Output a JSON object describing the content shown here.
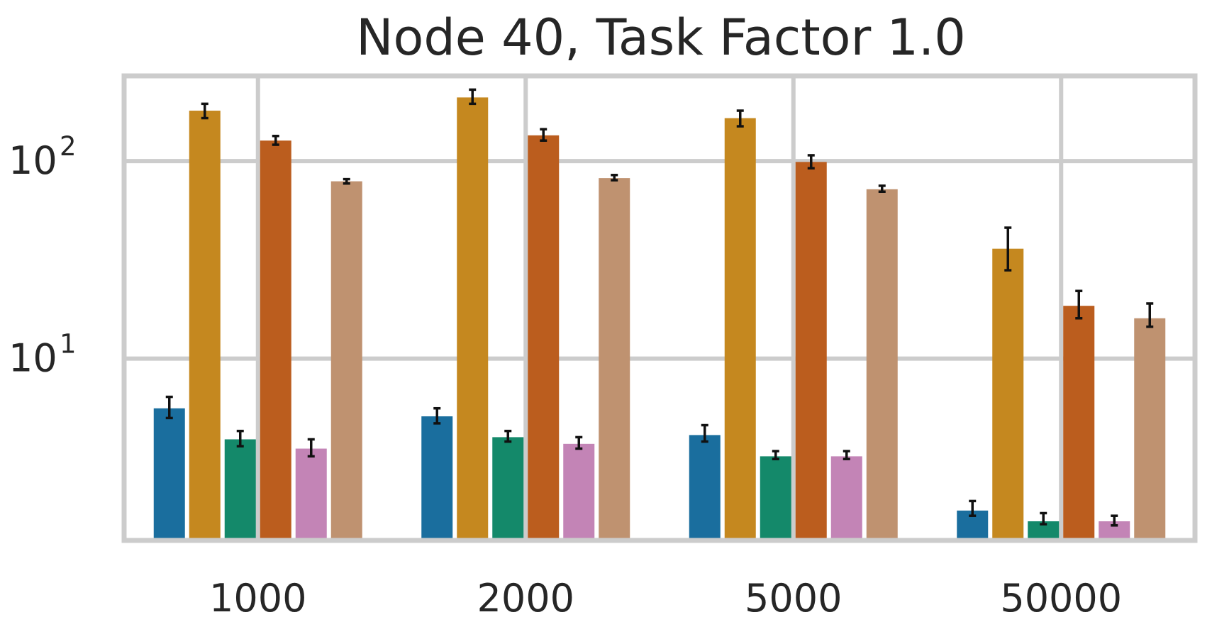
{
  "chart_data": {
    "type": "bar",
    "title": "Node 40, Task Factor 1.0",
    "xlabel": "",
    "ylabel": "",
    "yscale": "log",
    "ylim": [
      1.2,
      270
    ],
    "yticks": [
      {
        "value": 10,
        "base": "10",
        "exp": "1"
      },
      {
        "value": 100,
        "base": "10",
        "exp": "2"
      }
    ],
    "grid": true,
    "legend": "none",
    "categories": [
      "1000",
      "2000",
      "5000",
      "50000"
    ],
    "series": [
      {
        "color": "#1a6e9e",
        "values": [
          5.6,
          5.1,
          4.1,
          1.7
        ],
        "err_low": [
          5.0,
          4.7,
          3.8,
          1.6
        ],
        "err_high": [
          6.4,
          5.6,
          4.6,
          1.9
        ]
      },
      {
        "color": "#c5881f",
        "values": [
          180,
          210,
          165,
          36
        ],
        "err_low": [
          165,
          195,
          150,
          28
        ],
        "err_high": [
          195,
          230,
          180,
          46
        ]
      },
      {
        "color": "#14896a",
        "values": [
          3.9,
          4.0,
          3.2,
          1.5
        ],
        "err_low": [
          3.6,
          3.8,
          3.1,
          1.45
        ],
        "err_high": [
          4.3,
          4.3,
          3.4,
          1.65
        ]
      },
      {
        "color": "#bb5d1e",
        "values": [
          127,
          135,
          99,
          18.5
        ],
        "err_low": [
          121,
          127,
          92,
          16
        ],
        "err_high": [
          134,
          145,
          107,
          22
        ]
      },
      {
        "color": "#c384b6",
        "values": [
          3.5,
          3.7,
          3.2,
          1.5
        ],
        "err_low": [
          3.2,
          3.5,
          3.1,
          1.43
        ],
        "err_high": [
          3.9,
          4.0,
          3.4,
          1.6
        ]
      },
      {
        "color": "#bf9270",
        "values": [
          79,
          82,
          72,
          16
        ],
        "err_low": [
          77,
          80,
          70,
          14.5
        ],
        "err_high": [
          81,
          85,
          75,
          19
        ]
      }
    ]
  }
}
